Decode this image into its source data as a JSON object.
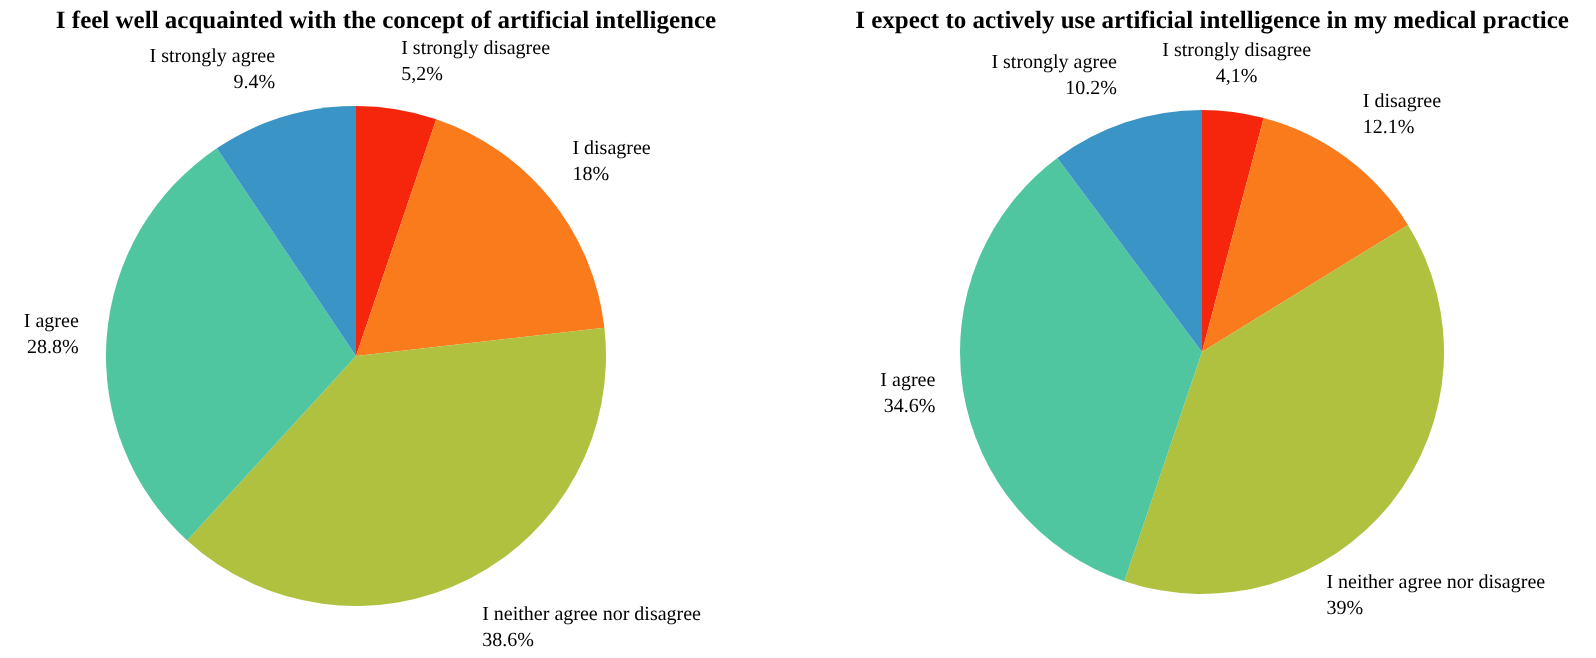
{
  "chart_data": [
    {
      "type": "pie",
      "title": "I feel well acquainted with the concept of artificial intelligence",
      "categories": [
        "I strongly disagree",
        "I disagree",
        "I neither agree nor disagree",
        "I agree",
        "I strongly agree"
      ],
      "values": [
        5.2,
        18,
        38.6,
        28.8,
        9.4
      ],
      "value_labels": [
        "5,2%",
        "18%",
        "38.6%",
        "28.8%",
        "9.4%"
      ],
      "colors": [
        "#f5260c",
        "#f97b1c",
        "#b0c140",
        "#4fc6a0",
        "#3a94c6"
      ]
    },
    {
      "type": "pie",
      "title": "I expect to actively use artificial intelligence in my medical practice",
      "categories": [
        "I strongly disagree",
        "I disagree",
        "I neither agree nor disagree",
        "I agree",
        "I strongly agree"
      ],
      "values": [
        4.1,
        12.1,
        39,
        34.6,
        10.2
      ],
      "value_labels": [
        "4,1%",
        "12.1%",
        "39%",
        "34.6%",
        "10.2%"
      ],
      "colors": [
        "#f5260c",
        "#f97b1c",
        "#b0c140",
        "#4fc6a0",
        "#3a94c6"
      ]
    }
  ]
}
